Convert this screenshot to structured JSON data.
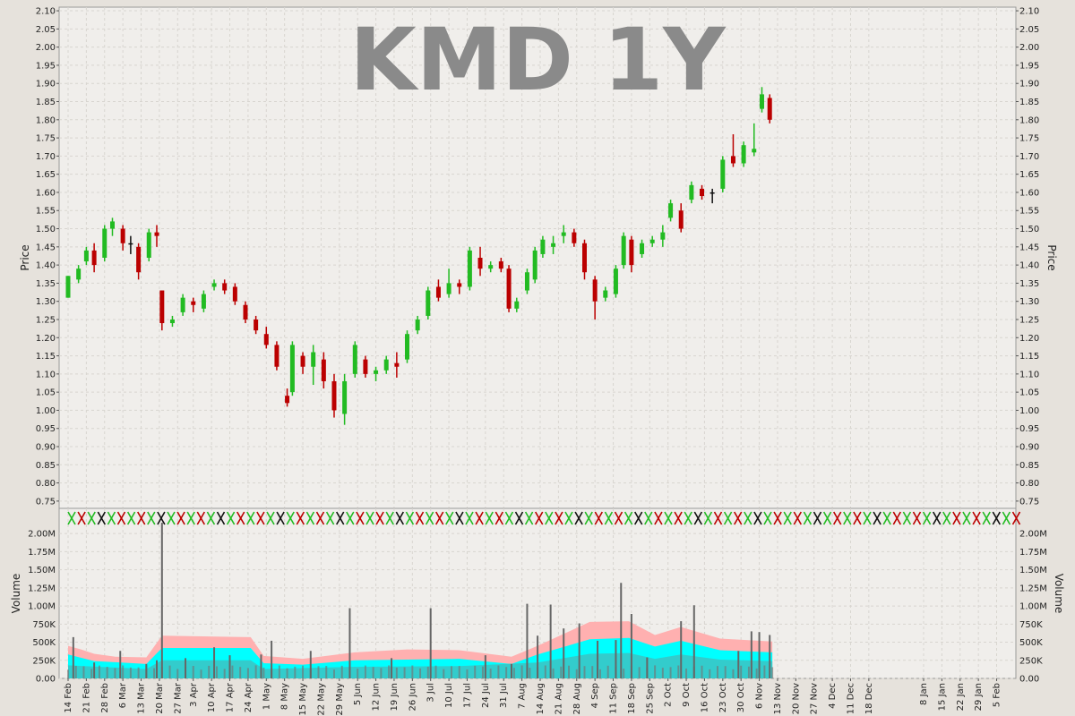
{
  "watermark": "KMD 1Y",
  "colors": {
    "up": "#22bb22",
    "down": "#bb0000",
    "flat": "#111111",
    "vol_pink": "#ffb0b0",
    "vol_cyan": "#00ffff",
    "vol_teal": "#33cccc",
    "vol_bar": "#666666"
  },
  "chart_data": [
    {
      "type": "candlestick",
      "title": "KMD 1Y",
      "ylabel": "Price",
      "ylim": [
        0.73,
        2.11
      ],
      "y_ticks": [
        "0.75",
        "0.80",
        "0.85",
        "0.90",
        "0.95",
        "1.00",
        "1.05",
        "1.10",
        "1.15",
        "1.20",
        "1.25",
        "1.30",
        "1.35",
        "1.40",
        "1.45",
        "1.50",
        "1.55",
        "1.60",
        "1.65",
        "1.70",
        "1.75",
        "1.80",
        "1.85",
        "1.90",
        "1.95",
        "2.00",
        "2.05",
        "2.10"
      ],
      "grid": true,
      "candles": [
        {
          "day": 0,
          "o": 1.31,
          "h": 1.37,
          "l": 1.31,
          "c": 1.37
        },
        {
          "day": 4,
          "o": 1.36,
          "h": 1.4,
          "l": 1.35,
          "c": 1.39
        },
        {
          "day": 7,
          "o": 1.41,
          "h": 1.45,
          "l": 1.4,
          "c": 1.44
        },
        {
          "day": 10,
          "o": 1.44,
          "h": 1.46,
          "l": 1.38,
          "c": 1.4
        },
        {
          "day": 14,
          "o": 1.42,
          "h": 1.51,
          "l": 1.41,
          "c": 1.5
        },
        {
          "day": 17,
          "o": 1.5,
          "h": 1.53,
          "l": 1.48,
          "c": 1.52
        },
        {
          "day": 21,
          "o": 1.5,
          "h": 1.51,
          "l": 1.44,
          "c": 1.46
        },
        {
          "day": 24,
          "o": 1.46,
          "h": 1.48,
          "l": 1.43,
          "c": 1.46
        },
        {
          "day": 27,
          "o": 1.45,
          "h": 1.46,
          "l": 1.36,
          "c": 1.38
        },
        {
          "day": 31,
          "o": 1.42,
          "h": 1.5,
          "l": 1.41,
          "c": 1.49
        },
        {
          "day": 34,
          "o": 1.49,
          "h": 1.51,
          "l": 1.45,
          "c": 1.48
        },
        {
          "day": 36,
          "o": 1.33,
          "h": 1.33,
          "l": 1.22,
          "c": 1.24
        },
        {
          "day": 40,
          "o": 1.24,
          "h": 1.26,
          "l": 1.23,
          "c": 1.25
        },
        {
          "day": 44,
          "o": 1.27,
          "h": 1.32,
          "l": 1.26,
          "c": 1.31
        },
        {
          "day": 48,
          "o": 1.3,
          "h": 1.31,
          "l": 1.27,
          "c": 1.29
        },
        {
          "day": 52,
          "o": 1.28,
          "h": 1.33,
          "l": 1.27,
          "c": 1.32
        },
        {
          "day": 56,
          "o": 1.34,
          "h": 1.36,
          "l": 1.33,
          "c": 1.35
        },
        {
          "day": 60,
          "o": 1.35,
          "h": 1.36,
          "l": 1.32,
          "c": 1.33
        },
        {
          "day": 64,
          "o": 1.34,
          "h": 1.35,
          "l": 1.29,
          "c": 1.3
        },
        {
          "day": 68,
          "o": 1.29,
          "h": 1.3,
          "l": 1.24,
          "c": 1.25
        },
        {
          "day": 72,
          "o": 1.25,
          "h": 1.26,
          "l": 1.21,
          "c": 1.22
        },
        {
          "day": 76,
          "o": 1.21,
          "h": 1.23,
          "l": 1.17,
          "c": 1.18
        },
        {
          "day": 80,
          "o": 1.18,
          "h": 1.19,
          "l": 1.11,
          "c": 1.12
        },
        {
          "day": 84,
          "o": 1.04,
          "h": 1.06,
          "l": 1.01,
          "c": 1.02
        },
        {
          "day": 86,
          "o": 1.05,
          "h": 1.19,
          "l": 1.04,
          "c": 1.18
        },
        {
          "day": 90,
          "o": 1.15,
          "h": 1.16,
          "l": 1.1,
          "c": 1.12
        },
        {
          "day": 94,
          "o": 1.12,
          "h": 1.18,
          "l": 1.07,
          "c": 1.16
        },
        {
          "day": 98,
          "o": 1.14,
          "h": 1.16,
          "l": 1.06,
          "c": 1.08
        },
        {
          "day": 102,
          "o": 1.08,
          "h": 1.1,
          "l": 0.98,
          "c": 1.0
        },
        {
          "day": 106,
          "o": 0.99,
          "h": 1.1,
          "l": 0.96,
          "c": 1.08
        },
        {
          "day": 110,
          "o": 1.1,
          "h": 1.19,
          "l": 1.09,
          "c": 1.18
        },
        {
          "day": 114,
          "o": 1.14,
          "h": 1.15,
          "l": 1.09,
          "c": 1.1
        },
        {
          "day": 118,
          "o": 1.1,
          "h": 1.12,
          "l": 1.08,
          "c": 1.11
        },
        {
          "day": 122,
          "o": 1.11,
          "h": 1.15,
          "l": 1.1,
          "c": 1.14
        },
        {
          "day": 126,
          "o": 1.13,
          "h": 1.16,
          "l": 1.09,
          "c": 1.12
        },
        {
          "day": 130,
          "o": 1.14,
          "h": 1.22,
          "l": 1.13,
          "c": 1.21
        },
        {
          "day": 134,
          "o": 1.22,
          "h": 1.26,
          "l": 1.21,
          "c": 1.25
        },
        {
          "day": 138,
          "o": 1.26,
          "h": 1.34,
          "l": 1.25,
          "c": 1.33
        },
        {
          "day": 142,
          "o": 1.34,
          "h": 1.36,
          "l": 1.3,
          "c": 1.31
        },
        {
          "day": 146,
          "o": 1.32,
          "h": 1.39,
          "l": 1.31,
          "c": 1.35
        },
        {
          "day": 150,
          "o": 1.35,
          "h": 1.36,
          "l": 1.32,
          "c": 1.34
        },
        {
          "day": 154,
          "o": 1.34,
          "h": 1.45,
          "l": 1.33,
          "c": 1.44
        },
        {
          "day": 158,
          "o": 1.42,
          "h": 1.45,
          "l": 1.37,
          "c": 1.39
        },
        {
          "day": 162,
          "o": 1.39,
          "h": 1.41,
          "l": 1.38,
          "c": 1.4
        },
        {
          "day": 166,
          "o": 1.41,
          "h": 1.42,
          "l": 1.38,
          "c": 1.39
        },
        {
          "day": 169,
          "o": 1.39,
          "h": 1.4,
          "l": 1.27,
          "c": 1.28
        },
        {
          "day": 172,
          "o": 1.28,
          "h": 1.31,
          "l": 1.27,
          "c": 1.3
        },
        {
          "day": 176,
          "o": 1.33,
          "h": 1.39,
          "l": 1.32,
          "c": 1.38
        },
        {
          "day": 179,
          "o": 1.36,
          "h": 1.45,
          "l": 1.35,
          "c": 1.44
        },
        {
          "day": 182,
          "o": 1.43,
          "h": 1.48,
          "l": 1.42,
          "c": 1.47
        },
        {
          "day": 186,
          "o": 1.45,
          "h": 1.48,
          "l": 1.43,
          "c": 1.46
        },
        {
          "day": 190,
          "o": 1.48,
          "h": 1.51,
          "l": 1.46,
          "c": 1.49
        },
        {
          "day": 194,
          "o": 1.49,
          "h": 1.5,
          "l": 1.45,
          "c": 1.46
        },
        {
          "day": 198,
          "o": 1.46,
          "h": 1.47,
          "l": 1.36,
          "c": 1.38
        },
        {
          "day": 202,
          "o": 1.36,
          "h": 1.37,
          "l": 1.25,
          "c": 1.3
        },
        {
          "day": 206,
          "o": 1.31,
          "h": 1.34,
          "l": 1.3,
          "c": 1.33
        },
        {
          "day": 210,
          "o": 1.32,
          "h": 1.4,
          "l": 1.31,
          "c": 1.39
        },
        {
          "day": 213,
          "o": 1.4,
          "h": 1.49,
          "l": 1.39,
          "c": 1.48
        },
        {
          "day": 216,
          "o": 1.47,
          "h": 1.48,
          "l": 1.38,
          "c": 1.4
        },
        {
          "day": 220,
          "o": 1.43,
          "h": 1.47,
          "l": 1.42,
          "c": 1.46
        },
        {
          "day": 224,
          "o": 1.46,
          "h": 1.48,
          "l": 1.45,
          "c": 1.47
        },
        {
          "day": 228,
          "o": 1.47,
          "h": 1.51,
          "l": 1.45,
          "c": 1.49
        },
        {
          "day": 231,
          "o": 1.53,
          "h": 1.58,
          "l": 1.52,
          "c": 1.57
        },
        {
          "day": 235,
          "o": 1.55,
          "h": 1.57,
          "l": 1.49,
          "c": 1.5
        },
        {
          "day": 239,
          "o": 1.58,
          "h": 1.63,
          "l": 1.57,
          "c": 1.62
        },
        {
          "day": 243,
          "o": 1.61,
          "h": 1.62,
          "l": 1.58,
          "c": 1.59
        },
        {
          "day": 247,
          "o": 1.6,
          "h": 1.61,
          "l": 1.57,
          "c": 1.6
        },
        {
          "day": 251,
          "o": 1.61,
          "h": 1.7,
          "l": 1.6,
          "c": 1.69
        },
        {
          "day": 255,
          "o": 1.7,
          "h": 1.76,
          "l": 1.67,
          "c": 1.68
        },
        {
          "day": 259,
          "o": 1.68,
          "h": 1.74,
          "l": 1.67,
          "c": 1.73
        },
        {
          "day": 263,
          "o": 1.71,
          "h": 1.79,
          "l": 1.7,
          "c": 1.72
        },
        {
          "day": 266,
          "o": 1.83,
          "h": 1.89,
          "l": 1.82,
          "c": 1.87
        },
        {
          "day": 269,
          "o": 1.86,
          "h": 1.87,
          "l": 1.79,
          "c": 1.8
        }
      ]
    },
    {
      "type": "volume",
      "ylabel": "Volume",
      "ylim": [
        0,
        2200000
      ],
      "y_ticks": [
        "0.00",
        "250K",
        "500K",
        "750K",
        "1.00M",
        "1.25M",
        "1.50M",
        "1.75M",
        "2.00M"
      ],
      "x_ticks": [
        "14 Feb",
        "21 Feb",
        "28 Feb",
        "6 Mar",
        "13 Mar",
        "20 Mar",
        "27 Mar",
        "3 Apr",
        "10 Apr",
        "17 Apr",
        "24 Apr",
        "1 May",
        "8 May",
        "15 May",
        "22 May",
        "29 May",
        "5 Jun",
        "12 Jun",
        "19 Jun",
        "26 Jun",
        "3 Jul",
        "10 Jul",
        "17 Jul",
        "24 Jul",
        "31 Jul",
        "7 Aug",
        "14 Aug",
        "21 Aug",
        "28 Aug",
        "4 Sep",
        "11 Sep",
        "18 Sep",
        "25 Sep",
        "2 Oct",
        "9 Oct",
        "16 Oct",
        "23 Oct",
        "30 Oct",
        "6 Nov",
        "13 Nov",
        "20 Nov",
        "27 Nov",
        "4 Dec",
        "11 Dec",
        "18 Dec",
        "8 Jan",
        "15 Jan",
        "22 Jan",
        "29 Jan",
        "5 Feb"
      ],
      "x_tick_days": [
        0,
        7,
        14,
        21,
        28,
        35,
        42,
        48,
        55,
        62,
        69,
        76,
        83,
        90,
        97,
        104,
        111,
        118,
        125,
        132,
        139,
        146,
        153,
        160,
        167,
        174,
        181,
        188,
        195,
        202,
        209,
        216,
        223,
        230,
        237,
        244,
        251,
        258,
        265,
        272,
        279,
        286,
        293,
        300,
        307,
        328,
        335,
        342,
        349,
        356
      ],
      "pink_band": [
        [
          0,
          450000
        ],
        [
          5,
          400000
        ],
        [
          10,
          340000
        ],
        [
          18,
          300000
        ],
        [
          30,
          290000
        ],
        [
          36,
          590000
        ],
        [
          70,
          570000
        ],
        [
          75,
          310000
        ],
        [
          90,
          270000
        ],
        [
          110,
          360000
        ],
        [
          130,
          400000
        ],
        [
          150,
          390000
        ],
        [
          170,
          300000
        ],
        [
          180,
          450000
        ],
        [
          200,
          780000
        ],
        [
          215,
          790000
        ],
        [
          225,
          600000
        ],
        [
          235,
          710000
        ],
        [
          250,
          550000
        ],
        [
          270,
          510000
        ]
      ],
      "cyan_band": [
        [
          0,
          330000
        ],
        [
          10,
          240000
        ],
        [
          30,
          200000
        ],
        [
          36,
          420000
        ],
        [
          70,
          420000
        ],
        [
          75,
          210000
        ],
        [
          90,
          190000
        ],
        [
          110,
          250000
        ],
        [
          150,
          270000
        ],
        [
          170,
          200000
        ],
        [
          180,
          330000
        ],
        [
          200,
          540000
        ],
        [
          215,
          560000
        ],
        [
          225,
          440000
        ],
        [
          235,
          520000
        ],
        [
          250,
          390000
        ],
        [
          270,
          360000
        ]
      ],
      "teal_band": [
        [
          0,
          180000
        ],
        [
          30,
          130000
        ],
        [
          36,
          250000
        ],
        [
          70,
          250000
        ],
        [
          75,
          130000
        ],
        [
          110,
          160000
        ],
        [
          150,
          170000
        ],
        [
          180,
          220000
        ],
        [
          200,
          340000
        ],
        [
          215,
          350000
        ],
        [
          225,
          270000
        ],
        [
          235,
          330000
        ],
        [
          250,
          260000
        ],
        [
          270,
          240000
        ]
      ],
      "spikes": [
        [
          2,
          570000
        ],
        [
          10,
          220000
        ],
        [
          20,
          380000
        ],
        [
          30,
          200000
        ],
        [
          34,
          250000
        ],
        [
          36,
          2150000
        ],
        [
          45,
          280000
        ],
        [
          56,
          430000
        ],
        [
          62,
          320000
        ],
        [
          74,
          330000
        ],
        [
          78,
          520000
        ],
        [
          93,
          380000
        ],
        [
          108,
          970000
        ],
        [
          124,
          280000
        ],
        [
          139,
          970000
        ],
        [
          160,
          320000
        ],
        [
          170,
          200000
        ],
        [
          176,
          1030000
        ],
        [
          180,
          590000
        ],
        [
          185,
          1020000
        ],
        [
          190,
          690000
        ],
        [
          196,
          760000
        ],
        [
          203,
          520000
        ],
        [
          210,
          530000
        ],
        [
          212,
          1320000
        ],
        [
          216,
          890000
        ],
        [
          222,
          290000
        ],
        [
          235,
          790000
        ],
        [
          240,
          1010000
        ],
        [
          257,
          380000
        ],
        [
          262,
          650000
        ],
        [
          265,
          640000
        ],
        [
          269,
          600000
        ]
      ]
    }
  ]
}
